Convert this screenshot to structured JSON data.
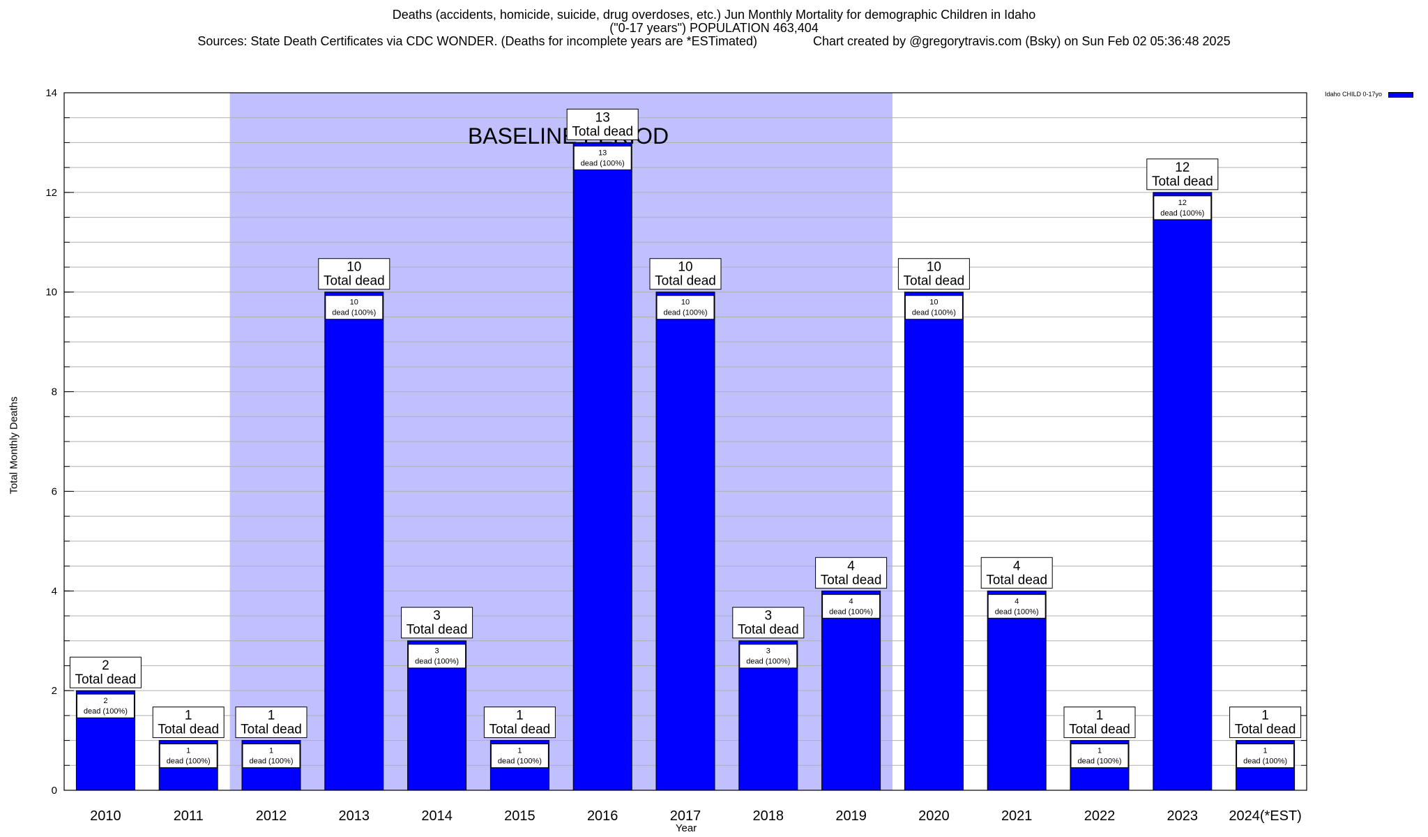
{
  "title": {
    "line1": "Deaths (accidents, homicide, suicide, drug overdoses, etc.) Jun Monthly Mortality for demographic Children in Idaho",
    "line2": "(\"0-17 years\") POPULATION 463,404",
    "line3": "Sources: State Death Certificates via CDC WONDER. (Deaths for incomplete years are *ESTimated)                Chart created by @gregorytravis.com (Bsky) on Sun Feb 02 05:36:48 2025"
  },
  "chart_data": {
    "type": "bar",
    "title": "Deaths (accidents, homicide, suicide, drug overdoses, etc.) Jun Monthly Mortality for demographic Children in Idaho",
    "xlabel": "Year",
    "ylabel": "Total Monthly Deaths",
    "ylim": [
      0,
      14
    ],
    "yticks": [
      0,
      2,
      4,
      6,
      8,
      10,
      12,
      14
    ],
    "grid": true,
    "legend": {
      "position": "top-right",
      "entries": [
        "Idaho CHILD 0-17yo"
      ]
    },
    "categories": [
      "2010",
      "2011",
      "2012",
      "2013",
      "2014",
      "2015",
      "2016",
      "2017",
      "2018",
      "2019",
      "2020",
      "2021",
      "2022",
      "2023",
      "2024(*EST)"
    ],
    "series": [
      {
        "name": "Idaho CHILD 0-17yo",
        "color": "#0000ff",
        "values": [
          2,
          1,
          1,
          10,
          3,
          1,
          13,
          10,
          3,
          4,
          10,
          4,
          1,
          12,
          1
        ]
      }
    ],
    "total_label": "Total dead",
    "inner_label_suffix": "dead (100%)",
    "baseline_period": {
      "label": "BASELINE PERIOD",
      "from": "2012",
      "to": "2019",
      "color": "#c0c0ff"
    }
  }
}
